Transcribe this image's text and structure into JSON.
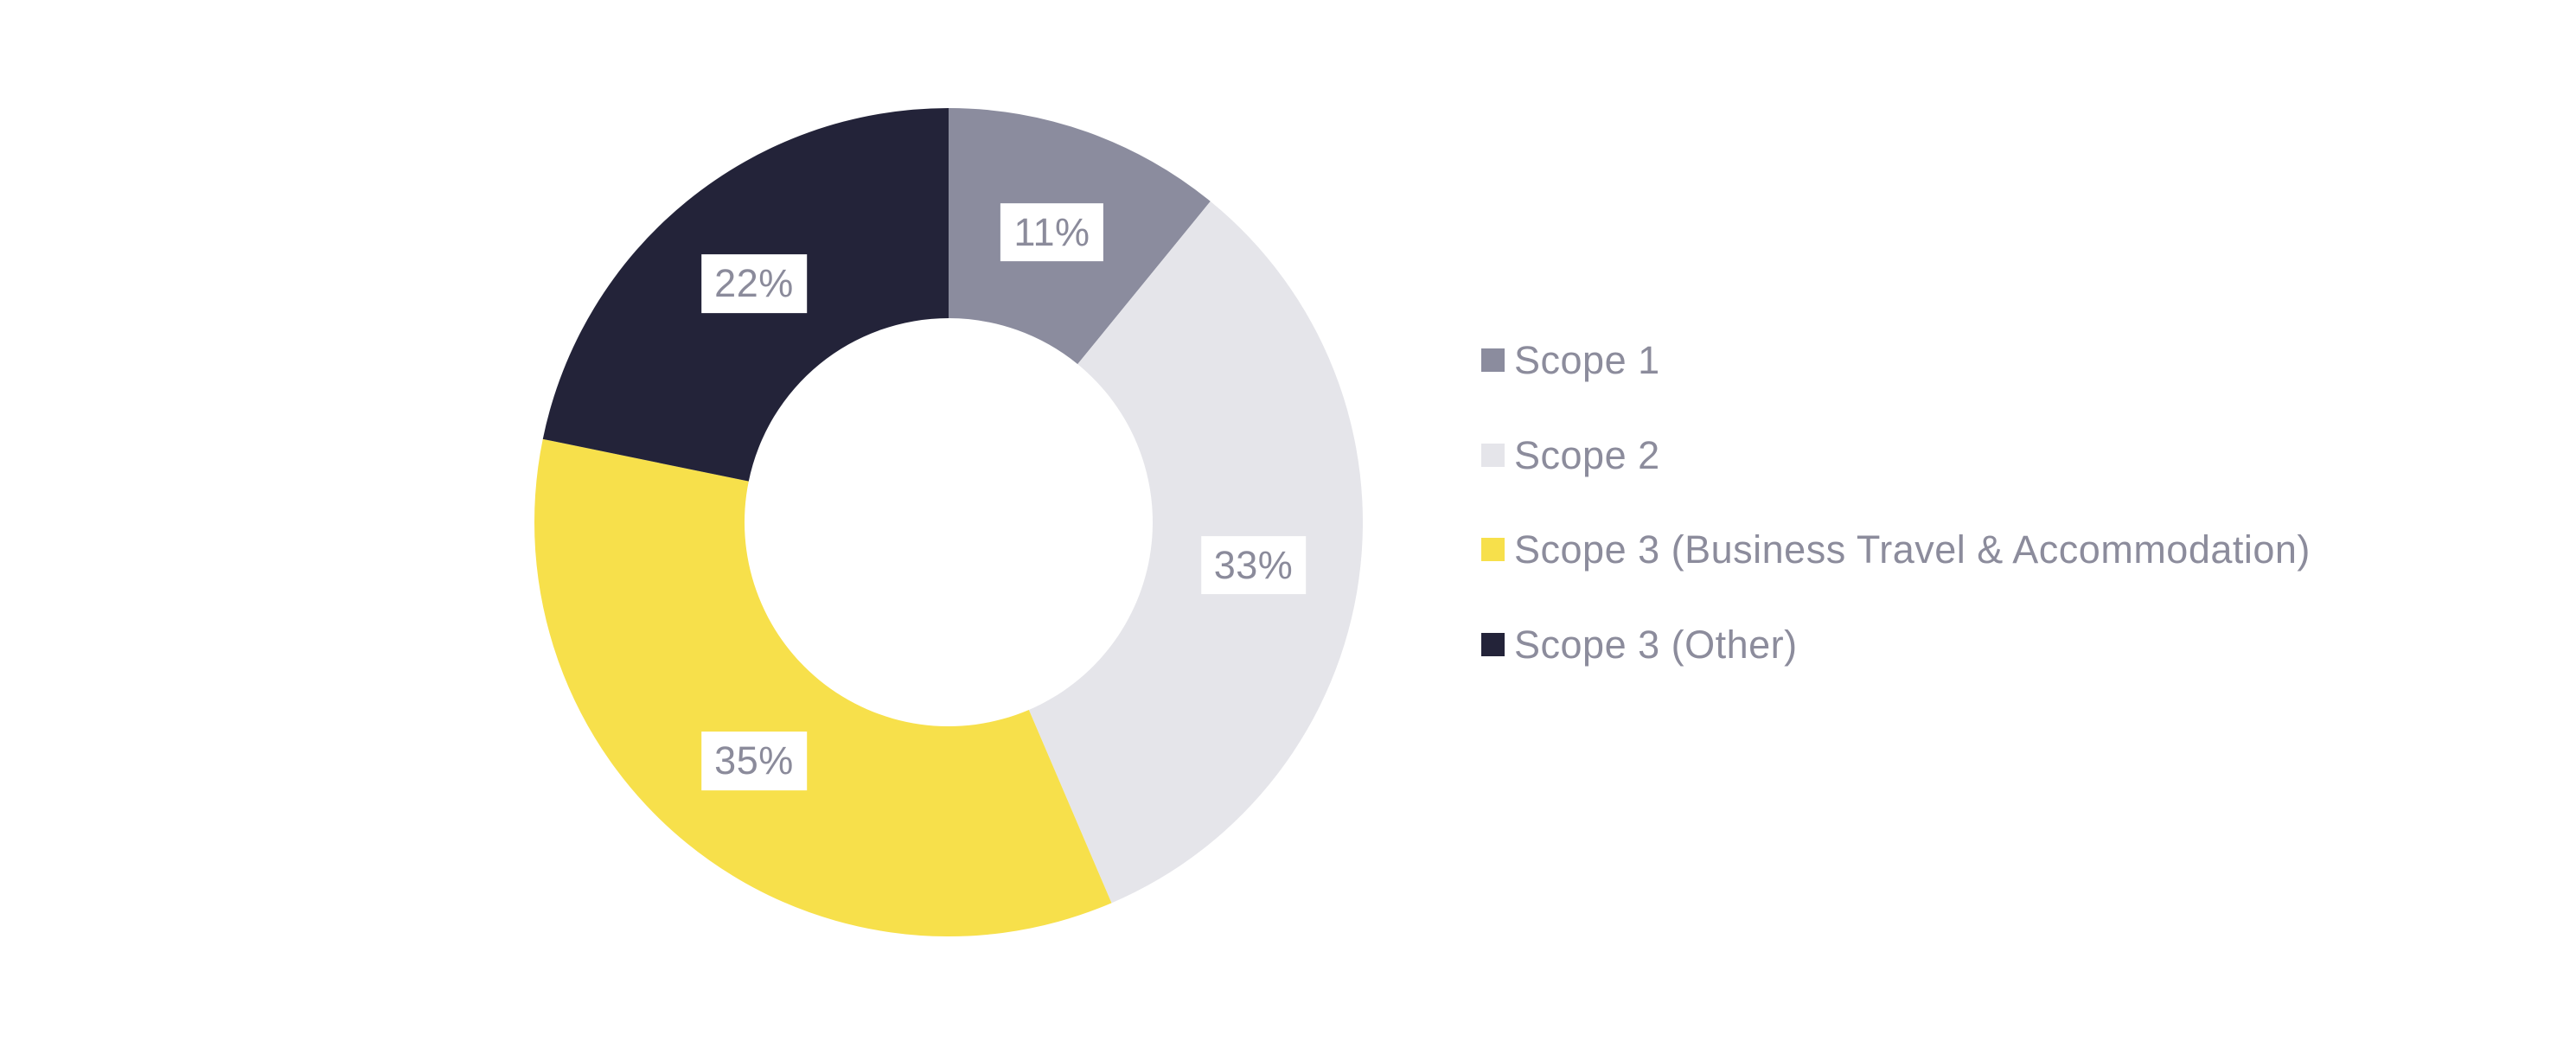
{
  "background": "#ffffff",
  "chart_data": {
    "type": "pie",
    "variant": "donut",
    "title": "",
    "xlabel": "",
    "ylabel": "",
    "legend_position": "right",
    "start_angle_deg": 0,
    "direction": "clockwise",
    "slices": [
      {
        "name": "Scope 1",
        "value": 11,
        "label": "11%",
        "color": "#8b8c9e"
      },
      {
        "name": "Scope 2",
        "value": 33,
        "label": "33%",
        "color": "#e5e5ea"
      },
      {
        "name": "Scope 3 (Business Travel & Accommodation)",
        "value": 35,
        "label": "35%",
        "color": "#f7e04b"
      },
      {
        "name": "Scope 3 (Other)",
        "value": 22,
        "label": "22%",
        "color": "#232339"
      }
    ],
    "label_text_color": "#8b8b9b",
    "label_bg_color": "#ffffff",
    "legend_text_color": "#8c8c9c"
  }
}
